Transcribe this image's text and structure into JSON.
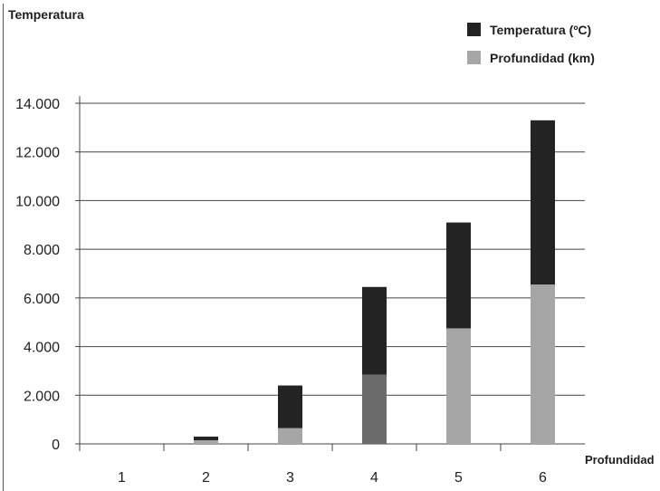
{
  "chart_data": {
    "type": "bar",
    "stacked": true,
    "title": "",
    "ylabel": "Temperatura",
    "xlabel": "Profundidad",
    "categories": [
      "1",
      "2",
      "3",
      "4",
      "5",
      "6"
    ],
    "ylim": [
      0,
      14000
    ],
    "yticks": [
      0,
      2000,
      4000,
      6000,
      8000,
      10000,
      12000,
      14000
    ],
    "ytick_labels": [
      "0",
      "2.000",
      "4.000",
      "6.000",
      "8.000",
      "10.000",
      "12.000",
      "14.000"
    ],
    "grid": true,
    "legend_position": "top-right",
    "series": [
      {
        "name": "Profundidad (km)",
        "color": "#a6a6a6",
        "values": [
          0,
          150,
          650,
          2850,
          4750,
          6550
        ],
        "point_colors": [
          "#a6a6a6",
          "#a6a6a6",
          "#a6a6a6",
          "#6b6b6b",
          "#a6a6a6",
          "#a6a6a6"
        ]
      },
      {
        "name": "Temperatura (ºC)",
        "color": "#232323",
        "values": [
          0,
          150,
          1750,
          3600,
          4350,
          6750
        ]
      }
    ],
    "legend_order": [
      1,
      0
    ]
  }
}
